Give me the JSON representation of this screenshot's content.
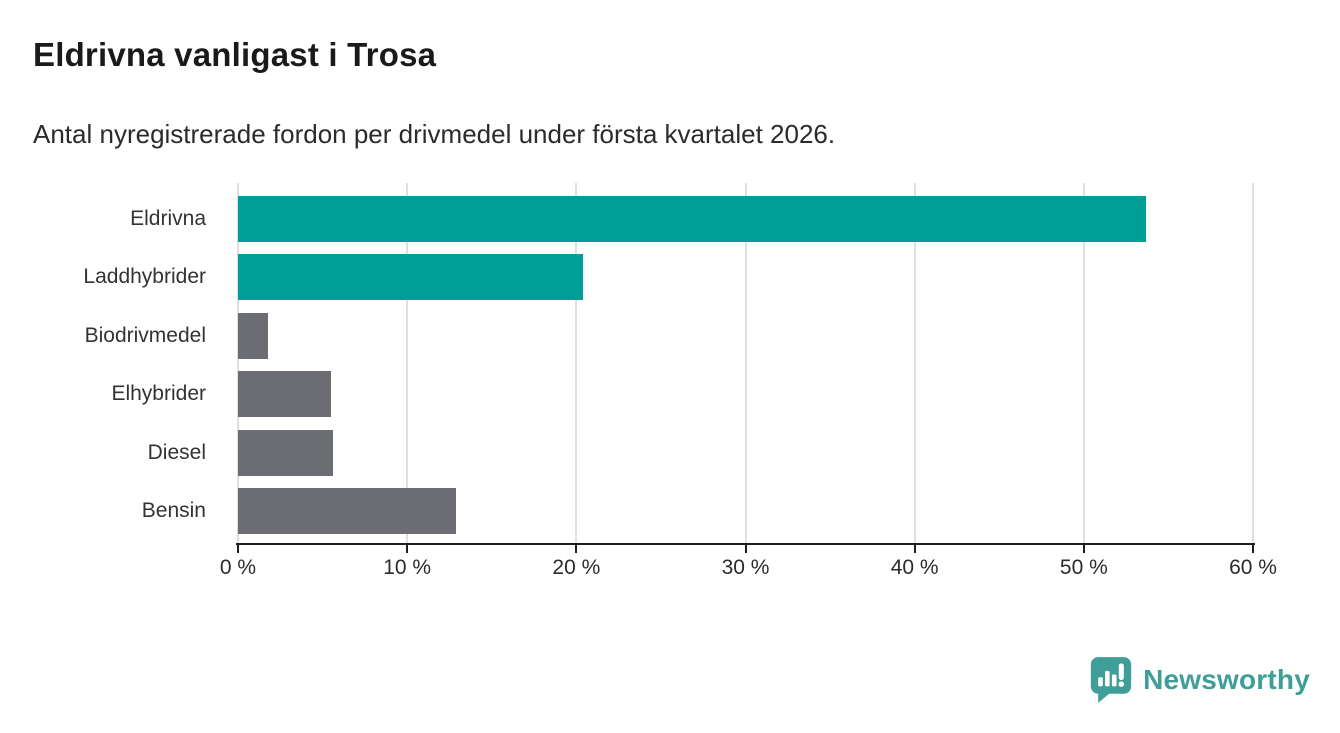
{
  "header": {
    "title": "Eldrivna vanligast i Trosa",
    "subtitle": "Antal nyregistrerade fordon per drivmedel under första kvartalet 2026."
  },
  "chart_data": {
    "type": "bar",
    "orientation": "horizontal",
    "title": "Eldrivna vanligast i Trosa",
    "subtitle": "Antal nyregistrerade fordon per drivmedel under första kvartalet 2026.",
    "categories": [
      "Eldrivna",
      "Laddhybrider",
      "Biodrivmedel",
      "Elhybrider",
      "Diesel",
      "Bensin"
    ],
    "values": [
      53.7,
      20.4,
      1.8,
      5.5,
      5.6,
      12.9
    ],
    "unit": "%",
    "xlim": [
      0,
      60
    ],
    "x_ticks": [
      0,
      10,
      20,
      30,
      40,
      50,
      60
    ],
    "x_tick_labels": [
      "0 %",
      "10 %",
      "20 %",
      "30 %",
      "40 %",
      "50 %",
      "60 %"
    ],
    "bar_colors": [
      "#009e97",
      "#009e97",
      "#6c6c73",
      "#6c6c73",
      "#6c6c73",
      "#6c6c73"
    ],
    "grid": true,
    "legend": "none",
    "colors": {
      "accent_teal": "#009e97",
      "bar_gray": "#6c6c73",
      "gridline": "#e0e0e0",
      "axis": "#1f1f1f",
      "label_text": "#333333"
    }
  },
  "footer": {
    "brand": "Newsworthy",
    "brand_color": "#3f9e97",
    "logo_icon": "speech-bubble-bar-chart-icon"
  }
}
